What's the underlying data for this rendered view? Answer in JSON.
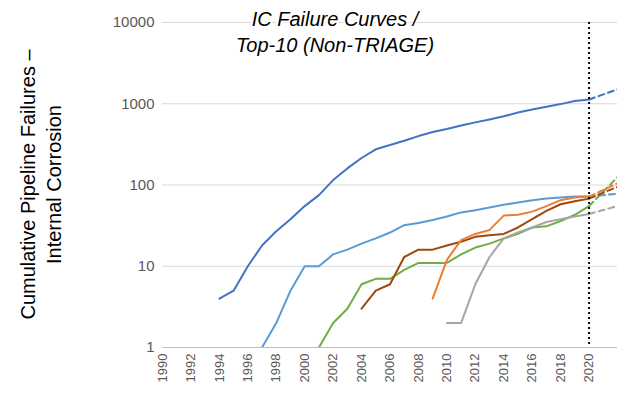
{
  "chart_data": {
    "type": "line",
    "title": "IC Failure Curves / Top-10 (Non-TRIAGE)",
    "ylabel": "Cumulative Pipeline Failures – Internal Corrosion",
    "x": [
      1990,
      1991,
      1992,
      1993,
      1994,
      1995,
      1996,
      1997,
      1998,
      1999,
      2000,
      2001,
      2002,
      2003,
      2004,
      2005,
      2006,
      2007,
      2008,
      2009,
      2010,
      2011,
      2012,
      2013,
      2014,
      2015,
      2016,
      2017,
      2018,
      2019,
      2020,
      2022
    ],
    "series": [
      {
        "color": "#4472c4",
        "line_style": "solid",
        "values": [
          null,
          null,
          null,
          null,
          4,
          5,
          10,
          18,
          27,
          38,
          55,
          75,
          115,
          160,
          215,
          275,
          310,
          350,
          400,
          450,
          490,
          540,
          590,
          640,
          700,
          780,
          850,
          920,
          990,
          1080,
          1130,
          null
        ]
      },
      {
        "color": "#5b9bd5",
        "line_style": "solid",
        "values": [
          null,
          null,
          null,
          null,
          null,
          null,
          null,
          1,
          2,
          5,
          10,
          10,
          14,
          16,
          19,
          22,
          26,
          32,
          34,
          37,
          41,
          46,
          49,
          53,
          57,
          61,
          65,
          68,
          70,
          72,
          72,
          null
        ]
      },
      {
        "color": "#70ad47",
        "line_style": "solid",
        "values": [
          null,
          null,
          null,
          null,
          null,
          null,
          null,
          null,
          null,
          null,
          null,
          1,
          2,
          3,
          6,
          7,
          7,
          9,
          11,
          11,
          11,
          14,
          17,
          19,
          22,
          25,
          30,
          31,
          36,
          43,
          55,
          null
        ]
      },
      {
        "color": "#9e480e",
        "line_style": "solid",
        "values": [
          null,
          null,
          null,
          null,
          null,
          null,
          null,
          null,
          null,
          null,
          null,
          null,
          null,
          null,
          3,
          5,
          6,
          13,
          16,
          16,
          18,
          20,
          23,
          24,
          25,
          30,
          38,
          48,
          58,
          63,
          68,
          null
        ]
      },
      {
        "color": "#ed7d31",
        "line_style": "solid",
        "values": [
          null,
          null,
          null,
          null,
          null,
          null,
          null,
          null,
          null,
          null,
          null,
          null,
          null,
          null,
          null,
          null,
          null,
          null,
          null,
          4,
          12,
          21,
          25,
          28,
          42,
          43,
          47,
          55,
          65,
          70,
          72,
          null
        ]
      },
      {
        "color": "#a5a5a5",
        "line_style": "solid",
        "values": [
          null,
          null,
          null,
          null,
          null,
          null,
          null,
          null,
          null,
          null,
          null,
          null,
          null,
          null,
          null,
          null,
          null,
          null,
          null,
          null,
          2,
          2,
          6,
          13,
          22,
          26,
          30,
          35,
          38,
          41,
          44,
          null
        ]
      },
      {
        "color": "#4472c4",
        "line_style": "dashed",
        "values": [
          null,
          null,
          null,
          null,
          null,
          null,
          null,
          null,
          null,
          null,
          null,
          null,
          null,
          null,
          null,
          null,
          null,
          null,
          null,
          null,
          null,
          null,
          null,
          null,
          null,
          null,
          null,
          null,
          null,
          null,
          1130,
          1500
        ]
      },
      {
        "color": "#5b9bd5",
        "line_style": "dashed",
        "values": [
          null,
          null,
          null,
          null,
          null,
          null,
          null,
          null,
          null,
          null,
          null,
          null,
          null,
          null,
          null,
          null,
          null,
          null,
          null,
          null,
          null,
          null,
          null,
          null,
          null,
          null,
          null,
          null,
          null,
          null,
          72,
          78
        ]
      },
      {
        "color": "#70ad47",
        "line_style": "dashed",
        "values": [
          null,
          null,
          null,
          null,
          null,
          null,
          null,
          null,
          null,
          null,
          null,
          null,
          null,
          null,
          null,
          null,
          null,
          null,
          null,
          null,
          null,
          null,
          null,
          null,
          null,
          null,
          null,
          null,
          null,
          null,
          55,
          125
        ]
      },
      {
        "color": "#9e480e",
        "line_style": "dashed",
        "values": [
          null,
          null,
          null,
          null,
          null,
          null,
          null,
          null,
          null,
          null,
          null,
          null,
          null,
          null,
          null,
          null,
          null,
          null,
          null,
          null,
          null,
          null,
          null,
          null,
          null,
          null,
          null,
          null,
          null,
          null,
          68,
          95
        ]
      },
      {
        "color": "#ed7d31",
        "line_style": "dashed",
        "values": [
          null,
          null,
          null,
          null,
          null,
          null,
          null,
          null,
          null,
          null,
          null,
          null,
          null,
          null,
          null,
          null,
          null,
          null,
          null,
          null,
          null,
          null,
          null,
          null,
          null,
          null,
          null,
          null,
          null,
          null,
          72,
          105
        ]
      },
      {
        "color": "#a5a5a5",
        "line_style": "dashed",
        "values": [
          null,
          null,
          null,
          null,
          null,
          null,
          null,
          null,
          null,
          null,
          null,
          null,
          null,
          null,
          null,
          null,
          null,
          null,
          null,
          null,
          null,
          null,
          null,
          null,
          null,
          null,
          null,
          null,
          null,
          null,
          44,
          55
        ]
      }
    ],
    "xlim": [
      1990,
      2022
    ],
    "xticks": [
      1990,
      1992,
      1994,
      1996,
      1998,
      2000,
      2002,
      2004,
      2006,
      2008,
      2010,
      2012,
      2014,
      2016,
      2018,
      2020
    ],
    "ylim": [
      1,
      10000
    ],
    "yticks": [
      1,
      10,
      100,
      1000,
      10000
    ],
    "log": "y",
    "grid": true,
    "vertical_line": 2020
  }
}
